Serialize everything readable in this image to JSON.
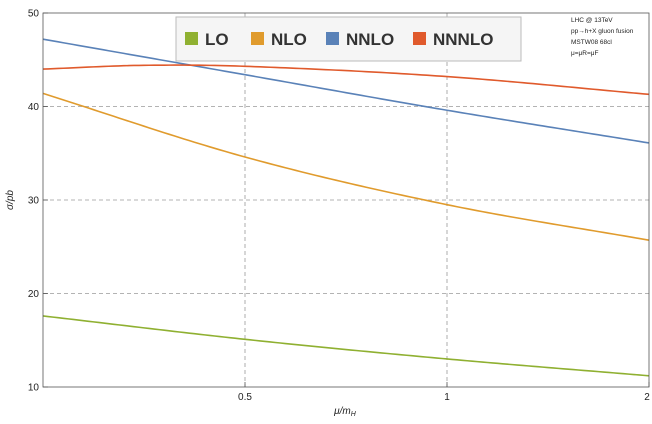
{
  "chart_data": {
    "type": "line",
    "xlabel": "μ/m",
    "xlabel_sub": "H",
    "ylabel": "σ/pb",
    "xlim": [
      0,
      2
    ],
    "ylim": [
      10,
      50
    ],
    "x_scale": "log",
    "grid": "dashed at ticks",
    "x_ticks": [
      {
        "value": 0.5,
        "label": "0.5"
      },
      {
        "value": 1,
        "label": "1"
      },
      {
        "value": 2,
        "label": "2"
      }
    ],
    "y_ticks": [
      {
        "value": 10,
        "label": "10"
      },
      {
        "value": 20,
        "label": "20"
      },
      {
        "value": 30,
        "label": "30"
      },
      {
        "value": 40,
        "label": "40"
      },
      {
        "value": 50,
        "label": "50"
      }
    ],
    "legend_placement": "top-center",
    "annotation_lines": [
      "LHC @ 13TeV",
      "pp→h+X gluon fusion",
      "MSTW08 68cl",
      "μ=μR=μF"
    ],
    "series": [
      {
        "name": "LO",
        "color": "#8fb031",
        "x": [
          0.25,
          0.5,
          1,
          2
        ],
        "values": [
          17.6,
          15.1,
          13.0,
          11.2
        ]
      },
      {
        "name": "NLO",
        "color": "#e09b2d",
        "x": [
          0.25,
          0.5,
          1,
          2
        ],
        "values": [
          41.4,
          34.6,
          29.5,
          25.7
        ]
      },
      {
        "name": "NNLO",
        "color": "#5a82b8",
        "x": [
          0.25,
          0.5,
          1,
          2
        ],
        "values": [
          47.2,
          43.4,
          39.6,
          36.1
        ]
      },
      {
        "name": "NNNLO",
        "color": "#e05a2c",
        "x": [
          0.25,
          0.35,
          0.5,
          1,
          2
        ],
        "values": [
          44.0,
          44.4,
          44.3,
          43.2,
          41.3
        ]
      }
    ]
  }
}
